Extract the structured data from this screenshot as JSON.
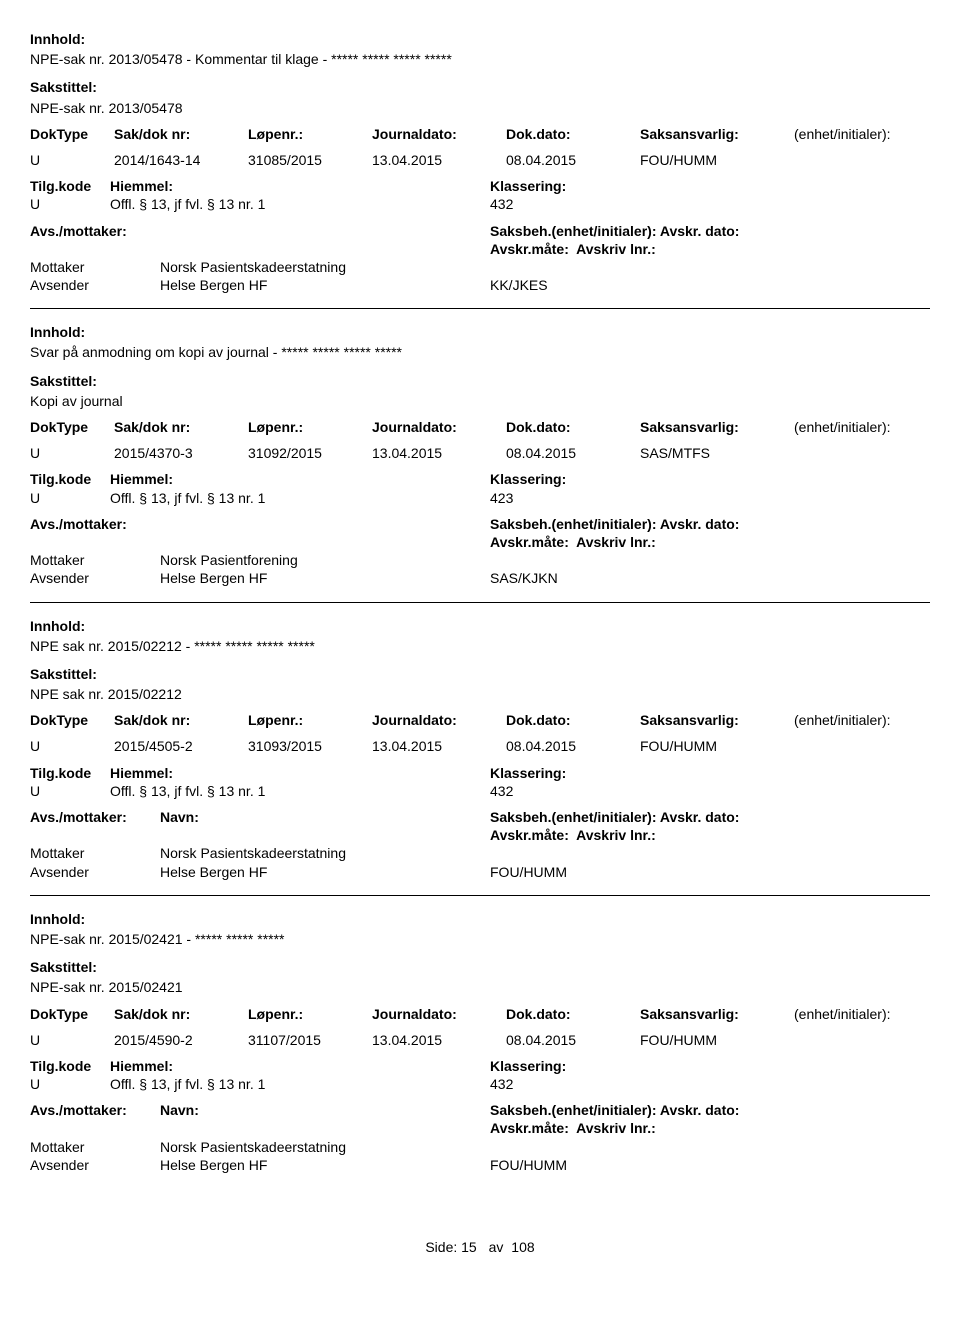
{
  "labels": {
    "innhold": "Innhold:",
    "sakstittel": "Sakstittel:",
    "doktype": "DokType",
    "sakdoknr": "Sak/dok nr:",
    "lopenr": "Løpenr.:",
    "journaldato": "Journaldato:",
    "dokdato": "Dok.dato:",
    "saksansvarlig": "Saksansvarlig:",
    "enhet": "(enhet/initialer):",
    "tilgkode": "Tilg.kode",
    "hjemmel": "Hiemmel:",
    "klassering": "Klassering:",
    "avsmottaker": "Avs./mottaker:",
    "navn": "Navn:",
    "saksbeh": "Saksbeh.(enhet/initialer):",
    "avskrdato": "Avskr. dato:",
    "avskrmate": "Avskr.måte:",
    "avskrivlnr": "Avskriv lnr.:",
    "mottaker": "Mottaker",
    "avsender": "Avsender",
    "side": "Side:",
    "av": "av"
  },
  "records": [
    {
      "innhold": "NPE-sak nr. 2013/05478 - Kommentar til klage - ***** ***** ***** *****",
      "sakstittel": "NPE-sak nr. 2013/05478",
      "doktype": "U",
      "sakdoknr": "2014/1643-14",
      "lopenr": "31085/2015",
      "journaldato": "13.04.2015",
      "dokdato": "08.04.2015",
      "saksansvarlig": "FOU/HUMM",
      "tilgkode": "U",
      "hjemmel": "Offl. § 13, jf fvl. § 13 nr. 1",
      "klassering": "432",
      "mottaker_navn": "Norsk Pasientskadeerstatning",
      "avsender_navn": "Helse Bergen HF",
      "saksbeh_kode": "KK/JKES",
      "show_avs_navn_label": false
    },
    {
      "innhold": "Svar på anmodning om kopi av journal - ***** ***** ***** *****",
      "sakstittel": "Kopi av journal",
      "doktype": "U",
      "sakdoknr": "2015/4370-3",
      "lopenr": "31092/2015",
      "journaldato": "13.04.2015",
      "dokdato": "08.04.2015",
      "saksansvarlig": "SAS/MTFS",
      "tilgkode": "U",
      "hjemmel": "Offl. § 13, jf fvl. § 13 nr. 1",
      "klassering": "423",
      "mottaker_navn": "Norsk Pasientforening",
      "avsender_navn": "Helse Bergen HF",
      "saksbeh_kode": "SAS/KJKN",
      "show_avs_navn_label": false
    },
    {
      "innhold": "NPE sak nr. 2015/02212 - ***** ***** ***** *****",
      "sakstittel": "NPE sak nr. 2015/02212",
      "doktype": "U",
      "sakdoknr": "2015/4505-2",
      "lopenr": "31093/2015",
      "journaldato": "13.04.2015",
      "dokdato": "08.04.2015",
      "saksansvarlig": "FOU/HUMM",
      "tilgkode": "U",
      "hjemmel": "Offl. § 13, jf fvl. § 13 nr. 1",
      "klassering": "432",
      "mottaker_navn": "Norsk Pasientskadeerstatning",
      "avsender_navn": "Helse Bergen HF",
      "saksbeh_kode": "FOU/HUMM",
      "show_avs_navn_label": true
    },
    {
      "innhold": "NPE-sak nr. 2015/02421 - ***** ***** *****",
      "sakstittel": "NPE-sak nr. 2015/02421",
      "doktype": "U",
      "sakdoknr": "2015/4590-2",
      "lopenr": "31107/2015",
      "journaldato": "13.04.2015",
      "dokdato": "08.04.2015",
      "saksansvarlig": "FOU/HUMM",
      "tilgkode": "U",
      "hjemmel": "Offl. § 13, jf fvl. § 13 nr. 1",
      "klassering": "432",
      "mottaker_navn": "Norsk Pasientskadeerstatning",
      "avsender_navn": "Helse Bergen HF",
      "saksbeh_kode": "FOU/HUMM",
      "show_avs_navn_label": true
    }
  ],
  "page": {
    "current": "15",
    "total": "108"
  }
}
